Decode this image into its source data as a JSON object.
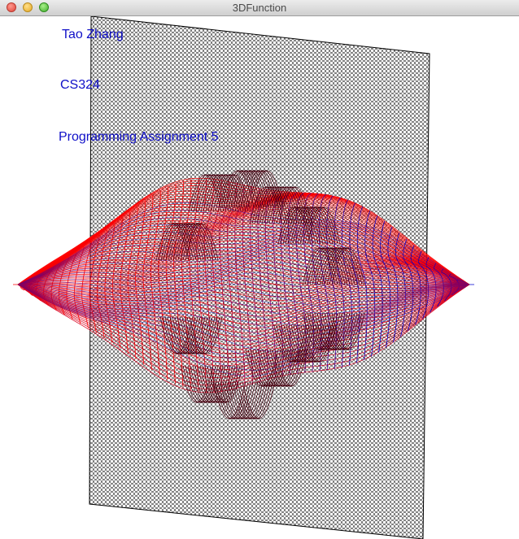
{
  "window": {
    "title": "3DFunction",
    "controls": {
      "close_color": "#e0443a",
      "minimize_color": "#e6a925",
      "zoom_color": "#3fae2b"
    }
  },
  "overlay": {
    "name": "Tao Zhang",
    "course": "CS324",
    "assignment": "Programming Assignment 5"
  },
  "render": {
    "plane_color": "#000000",
    "surface_colors": [
      "#ff0000",
      "#0000cc"
    ],
    "text_color": "#1010c8"
  }
}
